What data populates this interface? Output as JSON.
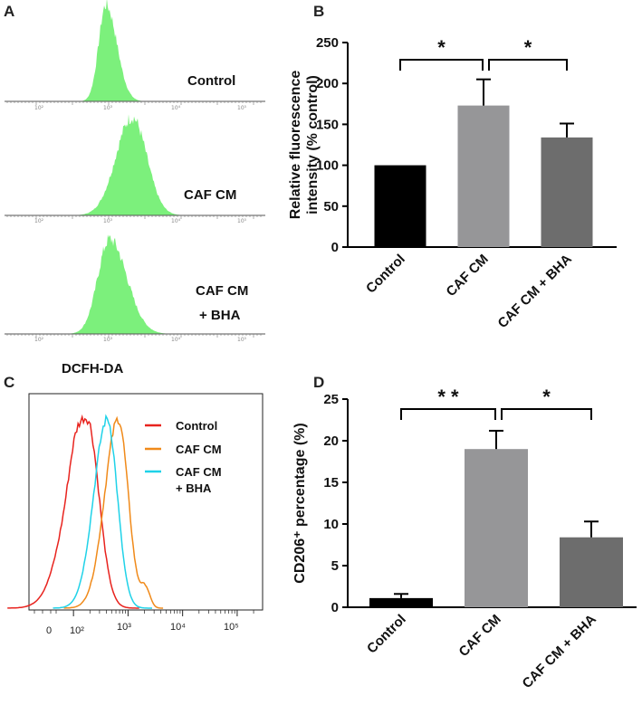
{
  "panels": {
    "a": {
      "letter": "A",
      "samples": [
        "Control",
        "CAF CM",
        "CAF CM",
        "+ BHA"
      ],
      "xlabel": "DCFH-DA",
      "faint_ticks": [
        "10²",
        "10³",
        "10⁴",
        "10⁵"
      ],
      "fill_color": "#7CF07C"
    },
    "b": {
      "letter": "B"
    },
    "c": {
      "letter": "C"
    },
    "d": {
      "letter": "D"
    }
  },
  "chart_data": [
    {
      "id": "b",
      "type": "bar",
      "categories": [
        "Control",
        "CAF CM",
        "CAF CM + BHA"
      ],
      "values": [
        100,
        173,
        134
      ],
      "errors": [
        0,
        32,
        17
      ],
      "colors": [
        "#000000",
        "#969698",
        "#6d6d6d"
      ],
      "ylabel": [
        "Relative fluorescence",
        "intensity (% control)"
      ],
      "ylim": [
        0,
        250
      ],
      "yticks": [
        0,
        50,
        100,
        150,
        200,
        250
      ],
      "significance": [
        {
          "from": 0,
          "to": 1,
          "label": "*"
        },
        {
          "from": 1,
          "to": 2,
          "label": "*"
        }
      ]
    },
    {
      "id": "c",
      "type": "line",
      "xscale": "log",
      "xticks": [
        "0",
        "10²",
        "10³",
        "10⁴",
        "10⁵"
      ],
      "legend_position": "top-right",
      "series": [
        {
          "name": "Control",
          "color": "#e8231e",
          "peak": 2.25
        },
        {
          "name": "CAF CM",
          "color": "#f08a1a",
          "peak": 2.82
        },
        {
          "name": "CAF CM + BHA",
          "color": "#1fd2e8",
          "peak": 2.62
        }
      ],
      "legend": [
        "Control",
        "CAF CM",
        "CAF CM",
        "+ BHA"
      ]
    },
    {
      "id": "d",
      "type": "bar",
      "categories": [
        "Control",
        "CAF CM",
        "CAF CM + BHA"
      ],
      "values": [
        1.1,
        19,
        8.4
      ],
      "errors": [
        0.5,
        2.2,
        1.9
      ],
      "colors": [
        "#000000",
        "#969698",
        "#6d6d6d"
      ],
      "ylabel": "CD206⁺ percentage (%)",
      "ylim": [
        0,
        25
      ],
      "yticks": [
        0,
        5,
        10,
        15,
        20,
        25
      ],
      "significance": [
        {
          "from": 0,
          "to": 1,
          "label": "* *"
        },
        {
          "from": 1,
          "to": 2,
          "label": "*"
        }
      ]
    }
  ]
}
